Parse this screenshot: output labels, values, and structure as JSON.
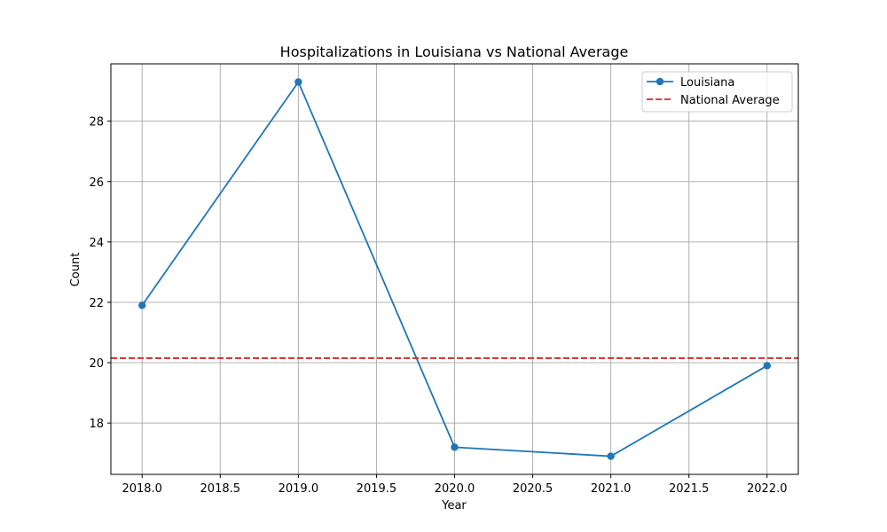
{
  "chart_data": {
    "type": "line",
    "title": "Hospitalizations in Louisiana vs National Average",
    "xlabel": "Year",
    "ylabel": "Count",
    "xlim": [
      2017.8,
      2022.2
    ],
    "ylim": [
      16.3,
      29.9
    ],
    "xticks": [
      "2018.0",
      "2018.5",
      "2019.0",
      "2019.5",
      "2020.0",
      "2020.5",
      "2021.0",
      "2021.5",
      "2022.0"
    ],
    "yticks": [
      "18",
      "20",
      "22",
      "24",
      "26",
      "28"
    ],
    "grid": true,
    "legend_position": "top-right",
    "series": [
      {
        "name": "Louisiana",
        "style": "solid-marker",
        "color": "#1f77b4",
        "x": [
          2018,
          2019,
          2020,
          2021,
          2022
        ],
        "values": [
          21.9,
          29.3,
          17.2,
          16.9,
          19.9
        ]
      },
      {
        "name": "National Average",
        "style": "dashed",
        "color": "#d62728",
        "values": [
          20.15
        ]
      }
    ]
  }
}
